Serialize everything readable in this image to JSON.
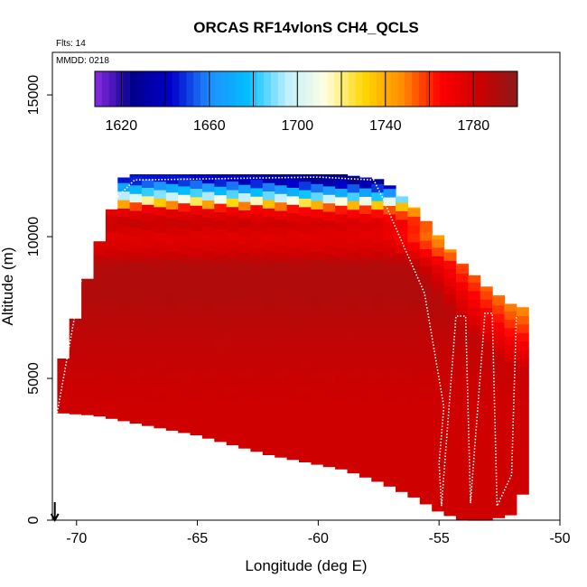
{
  "chart_data": {
    "type": "heatmap",
    "title": "ORCAS RF14vlonS CH4_QCLS",
    "annotations": {
      "flights": "Flts: 14",
      "date": "MMDD: 0218"
    },
    "xlabel": "Longitude (deg E)",
    "ylabel": "Altitude (m)",
    "xlim": [
      -71,
      -50
    ],
    "ylim": [
      0,
      16500
    ],
    "xticks": [
      -70,
      -65,
      -60,
      -55,
      -50
    ],
    "yticks": [
      0,
      5000,
      10000,
      15000
    ],
    "colorbar": {
      "range": [
        1608,
        1800
      ],
      "ticks": [
        1620,
        1660,
        1700,
        1740,
        1780
      ],
      "colors": [
        "#8a2be2",
        "#00008b",
        "#0000cd",
        "#1e90ff",
        "#00bfff",
        "#bfefff",
        "#ffffe0",
        "#ffd700",
        "#ff8c00",
        "#ff0000",
        "#cd0000",
        "#8b1a1a"
      ]
    },
    "curtain": {
      "lon_bins": [
        -70.8,
        -69.2,
        -68.0,
        -65.0,
        -62.0,
        -59.0,
        -57.3,
        -56.0,
        -55.0,
        -54.0,
        -53.0,
        -52.0,
        -51.5
      ],
      "top_alt_m": [
        5000,
        9500,
        12200,
        12200,
        12200,
        12200,
        12000,
        11000,
        10000,
        9000,
        8200,
        7600,
        7500
      ],
      "bottom_alt_m": [
        3800,
        3700,
        3500,
        3000,
        2300,
        1800,
        1300,
        800,
        300,
        0,
        0,
        200,
        1000
      ],
      "profile_alt_m": [
        12000,
        11400,
        11000,
        10500,
        10000,
        9500,
        9000,
        8000,
        6000,
        4000
      ],
      "ch4_ppb_by_alt": [
        1645,
        1700,
        1770,
        1785,
        1775,
        1780,
        1790,
        1790,
        1785,
        1782
      ]
    },
    "start_marker": {
      "lon": -70.9,
      "alt_m": 0
    },
    "grid": false,
    "legend": "colorbar-top"
  }
}
